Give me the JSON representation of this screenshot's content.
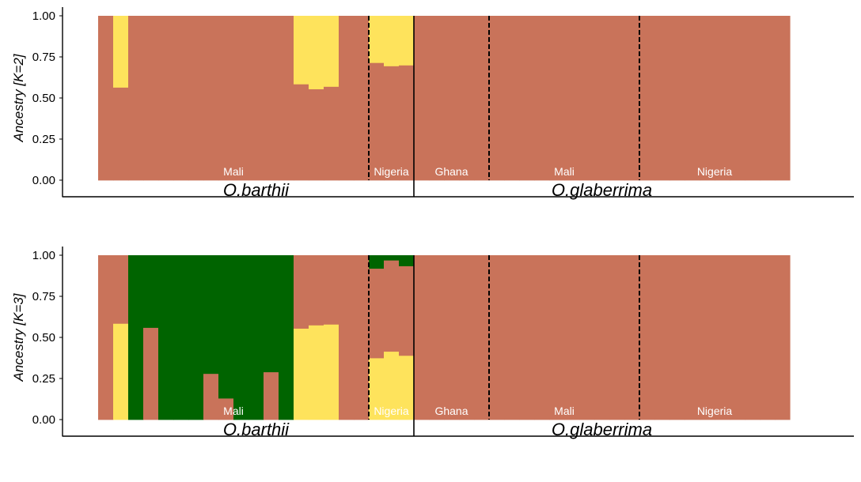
{
  "chart_data": [
    {
      "type": "bar",
      "stacked": true,
      "ylabel": "Ancestry [K=2]",
      "ylim": [
        0,
        1
      ],
      "yticks": [
        0.0,
        0.25,
        0.5,
        0.75,
        1.0
      ],
      "ytick_labels": [
        "0.00",
        "0.25",
        "0.50",
        "0.75",
        "1.00"
      ],
      "colors": [
        "#c9735a",
        "#fee35c"
      ],
      "samples": [
        [
          1,
          0
        ],
        [
          0.565,
          0.435
        ],
        [
          1,
          0
        ],
        [
          1,
          0
        ],
        [
          1,
          0
        ],
        [
          1,
          0
        ],
        [
          1,
          0
        ],
        [
          1,
          0
        ],
        [
          1,
          0
        ],
        [
          1,
          0
        ],
        [
          1,
          0
        ],
        [
          1,
          0
        ],
        [
          1,
          0
        ],
        [
          0.585,
          0.415
        ],
        [
          0.555,
          0.445
        ],
        [
          0.57,
          0.43
        ],
        [
          1,
          0
        ],
        [
          1,
          0
        ],
        [
          0.715,
          0.285
        ],
        [
          0.695,
          0.305
        ],
        [
          0.7,
          0.3
        ],
        [
          1,
          0
        ],
        [
          1,
          0
        ],
        [
          1,
          0
        ],
        [
          1,
          0
        ],
        [
          1,
          0
        ],
        [
          1,
          0
        ],
        [
          1,
          0
        ],
        [
          1,
          0
        ],
        [
          1,
          0
        ],
        [
          1,
          0
        ],
        [
          1,
          0
        ],
        [
          1,
          0
        ],
        [
          1,
          0
        ],
        [
          1,
          0
        ],
        [
          1,
          0
        ],
        [
          1,
          0
        ],
        [
          1,
          0
        ],
        [
          1,
          0
        ],
        [
          1,
          0
        ],
        [
          1,
          0
        ],
        [
          1,
          0
        ],
        [
          1,
          0
        ],
        [
          1,
          0
        ],
        [
          1,
          0
        ],
        [
          1,
          0
        ]
      ],
      "group_labels": [
        "Mali",
        "Nigeria",
        "Ghana",
        "Mali",
        "Nigeria"
      ],
      "species_labels": [
        "O.barthii",
        "O.glaberrima"
      ]
    },
    {
      "type": "bar",
      "stacked": true,
      "ylabel": "Ancestry [K=3]",
      "ylim": [
        0,
        1
      ],
      "yticks": [
        0.0,
        0.25,
        0.5,
        0.75,
        1.0
      ],
      "ytick_labels": [
        "0.00",
        "0.25",
        "0.50",
        "0.75",
        "1.00"
      ],
      "colors": [
        "#fee35c",
        "#c9735a",
        "#006400"
      ],
      "samples": [
        [
          0,
          1,
          0
        ],
        [
          0.585,
          0.415,
          0
        ],
        [
          0,
          0,
          1
        ],
        [
          0,
          0.56,
          0.44
        ],
        [
          0,
          0,
          1
        ],
        [
          0,
          0,
          1
        ],
        [
          0,
          0,
          1
        ],
        [
          0,
          0.28,
          0.72
        ],
        [
          0,
          0.13,
          0.87
        ],
        [
          0,
          0,
          1
        ],
        [
          0,
          0,
          1
        ],
        [
          0,
          0.29,
          0.71
        ],
        [
          0,
          0,
          1
        ],
        [
          0.555,
          0.445,
          0
        ],
        [
          0.575,
          0.425,
          0
        ],
        [
          0.58,
          0.42,
          0
        ],
        [
          0,
          1,
          0
        ],
        [
          0,
          1,
          0
        ],
        [
          0.375,
          0.545,
          0.08
        ],
        [
          0.415,
          0.555,
          0.03
        ],
        [
          0.39,
          0.545,
          0.065
        ],
        [
          0,
          1,
          0
        ],
        [
          0,
          1,
          0
        ],
        [
          0,
          1,
          0
        ],
        [
          0,
          1,
          0
        ],
        [
          0,
          1,
          0
        ],
        [
          0,
          1,
          0
        ],
        [
          0,
          1,
          0
        ],
        [
          0,
          1,
          0
        ],
        [
          0,
          1,
          0
        ],
        [
          0,
          1,
          0
        ],
        [
          0,
          1,
          0
        ],
        [
          0,
          1,
          0
        ],
        [
          0,
          1,
          0
        ],
        [
          0,
          1,
          0
        ],
        [
          0,
          1,
          0
        ],
        [
          0,
          1,
          0
        ],
        [
          0,
          1,
          0
        ],
        [
          0,
          1,
          0
        ],
        [
          0,
          1,
          0
        ],
        [
          0,
          1,
          0
        ],
        [
          0,
          1,
          0
        ],
        [
          0,
          1,
          0
        ],
        [
          0,
          1,
          0
        ],
        [
          0,
          1,
          0
        ],
        [
          0,
          1,
          0
        ]
      ],
      "group_labels": [
        "Mali",
        "Nigeria",
        "Ghana",
        "Mali",
        "Nigeria"
      ],
      "species_labels": [
        "O.barthii",
        "O.glaberrima"
      ]
    }
  ]
}
